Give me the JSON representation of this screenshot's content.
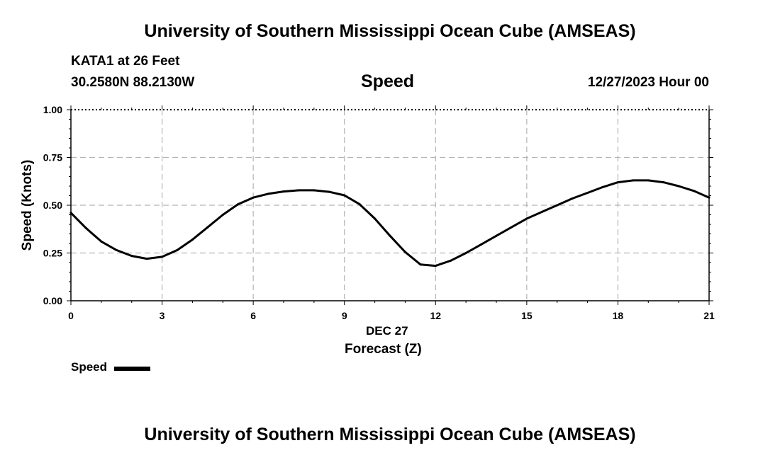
{
  "header": {
    "title": "University of Southern Mississippi Ocean Cube (AMSEAS)",
    "station": "KATA1 at 26 Feet",
    "coords": "30.2580N  88.2130W",
    "date": "12/27/2023 Hour 00"
  },
  "footer": {
    "title": "University of Southern Mississippi Ocean Cube (AMSEAS)"
  },
  "legend": {
    "label": "Speed"
  },
  "chart_data": {
    "type": "line",
    "title": "Speed",
    "xlabel": "Forecast (Z)",
    "xlabel_date": "DEC 27",
    "ylabel": "Speed (Knots)",
    "xlim": [
      0,
      21
    ],
    "ylim": [
      0,
      1
    ],
    "x_ticks": [
      0,
      3,
      6,
      9,
      12,
      15,
      18,
      21
    ],
    "x_tick_labels": [
      "0",
      "3",
      "6",
      "9",
      "12",
      "15",
      "18",
      "21"
    ],
    "y_ticks": [
      0,
      0.25,
      0.5,
      0.75,
      1.0
    ],
    "y_tick_labels": [
      "0.00",
      "0.25",
      "0.50",
      "0.75",
      "1.00"
    ],
    "grid": true,
    "series": [
      {
        "name": "Speed",
        "color": "#000000",
        "x": [
          0,
          0.5,
          1,
          1.5,
          2,
          2.5,
          3,
          3.5,
          4,
          4.5,
          5,
          5.5,
          6,
          6.5,
          7,
          7.5,
          8,
          8.5,
          9,
          9.5,
          10,
          10.5,
          11,
          11.5,
          12,
          12.5,
          13,
          13.5,
          14,
          14.5,
          15,
          15.5,
          16,
          16.5,
          17,
          17.5,
          18,
          18.5,
          19,
          19.5,
          20,
          20.5,
          21
        ],
        "values": [
          0.46,
          0.38,
          0.31,
          0.265,
          0.235,
          0.22,
          0.23,
          0.265,
          0.32,
          0.385,
          0.45,
          0.505,
          0.54,
          0.56,
          0.572,
          0.578,
          0.578,
          0.57,
          0.552,
          0.505,
          0.43,
          0.34,
          0.255,
          0.19,
          0.183,
          0.21,
          0.25,
          0.295,
          0.34,
          0.385,
          0.43,
          0.465,
          0.5,
          0.535,
          0.565,
          0.595,
          0.62,
          0.63,
          0.63,
          0.62,
          0.6,
          0.575,
          0.54
        ]
      }
    ]
  }
}
